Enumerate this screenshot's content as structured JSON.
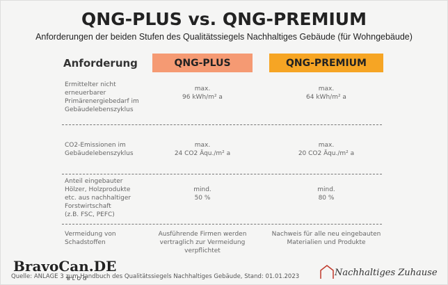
{
  "header": {
    "title": "QNG-PLUS vs. QNG-PREMIUM",
    "subtitle": "Anforderungen der beiden Stufen des Qualitätssiegels Nachhaltiges Gebäude (für Wohngebäude)"
  },
  "table": {
    "columns": [
      "Anforderung",
      "QNG-PLUS",
      "QNG-PREMIUM"
    ],
    "rows": [
      {
        "label": [
          "Ermittelter nicht",
          "erneuerbarer",
          "Primärenergiebedarf im",
          "Gebäudelebenszyklus"
        ],
        "plus": [
          "max.",
          "96 kWh/m² a"
        ],
        "premium": [
          "max.",
          "64 kWh/m² a"
        ]
      },
      {
        "label": [
          "CO2-Emissionen im",
          "Gebäudelebenszyklus"
        ],
        "plus": [
          "max.",
          "24 CO2 Äqu./m² a"
        ],
        "premium": [
          "max.",
          "20 CO2 Äqu./m² a"
        ]
      },
      {
        "label": [
          "Anteil eingebauter",
          "Hölzer, Holzprodukte",
          "etc. aus nachhaltiger",
          "Forstwirtschaft",
          "(z.B. FSC, PEFC)"
        ],
        "plus": [
          "mind.",
          "50 %"
        ],
        "premium": [
          "mind.",
          "80 %"
        ]
      },
      {
        "label": [
          "Vermeidung von",
          "Schadstoffen"
        ],
        "plus": [
          "Ausführende Firmen werden",
          "vertraglich zur Vermeidung",
          "verpflichtet"
        ],
        "premium": [
          "Nachweis für alle neu eingebauten",
          "Materialien und Produkte"
        ]
      }
    ]
  },
  "footer": {
    "source": "Quelle: ANLAGE 3 zum Handbuch des Qualitätssiegels Nachhaltiges Gebäude, Stand: 01.01.2023",
    "watermark": "BravoCan.DE",
    "watermark_sub": "BLOG",
    "logo": "Nachhaltiges Zuhause"
  }
}
